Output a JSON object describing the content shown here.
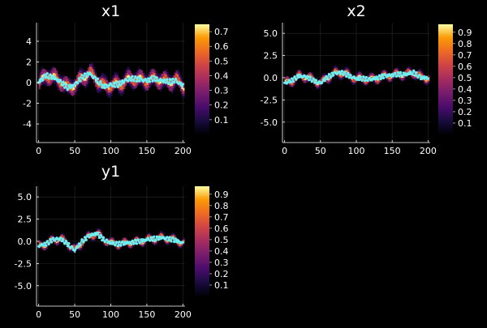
{
  "chart_data": [
    {
      "type": "heatmap+scatter",
      "title": "x1",
      "x_ticks": [
        "0",
        "50",
        "100",
        "150",
        "200"
      ],
      "y_ticks": [
        "-4",
        "-2",
        "0",
        "2",
        "4"
      ],
      "xlim": [
        -3,
        203
      ],
      "ylim": [
        -5.8,
        5.8
      ],
      "grid": true,
      "colorbar_ticks": [
        "0.1",
        "0.2",
        "0.3",
        "0.4",
        "0.5",
        "0.6",
        "0.7"
      ],
      "colorbar_range": [
        0.0,
        0.75
      ],
      "band_halfwidth": 0.9,
      "line_color": "#6ff0f0",
      "points": {
        "x": [
          0,
          10,
          20,
          30,
          40,
          50,
          60,
          70,
          80,
          90,
          100,
          110,
          120,
          130,
          140,
          150,
          160,
          170,
          180,
          190,
          200
        ],
        "y": [
          0.0,
          0.7,
          0.5,
          0.1,
          -0.5,
          -0.2,
          0.5,
          0.9,
          0.3,
          -0.4,
          -0.2,
          -0.2,
          0.2,
          0.4,
          0.3,
          0.2,
          0.4,
          0.2,
          0.1,
          0.2,
          -0.3
        ]
      }
    },
    {
      "type": "heatmap+scatter",
      "title": "x2",
      "x_ticks": [
        "0",
        "50",
        "100",
        "150",
        "200"
      ],
      "y_ticks": [
        "5.0",
        "2.5",
        "0.0",
        "-2.5",
        "-5.0"
      ],
      "y_tick_values": [
        5,
        2.5,
        0,
        -2.5,
        -5
      ],
      "xlim": [
        -3,
        203
      ],
      "ylim": [
        -7.3,
        6.2
      ],
      "grid": true,
      "colorbar_ticks": [
        "0.1",
        "0.2",
        "0.3",
        "0.4",
        "0.5",
        "0.6",
        "0.7",
        "0.8",
        "0.9"
      ],
      "colorbar_range": [
        0.0,
        0.97
      ],
      "band_halfwidth": 0.55,
      "line_color": "#6ff0f0",
      "points": {
        "x": [
          0,
          10,
          20,
          30,
          40,
          50,
          60,
          70,
          80,
          90,
          100,
          110,
          120,
          130,
          140,
          150,
          160,
          170,
          180,
          190,
          200
        ],
        "y": [
          -0.6,
          -0.3,
          0.2,
          0.1,
          -0.3,
          -0.6,
          0.1,
          0.5,
          0.6,
          0.2,
          -0.1,
          -0.1,
          -0.2,
          0.0,
          0.2,
          0.3,
          0.4,
          0.4,
          0.6,
          0.0,
          0.0
        ]
      }
    },
    {
      "type": "heatmap+scatter",
      "title": "y1",
      "x_ticks": [
        "0",
        "50",
        "100",
        "150",
        "200"
      ],
      "y_ticks": [
        "5.0",
        "2.5",
        "0.0",
        "-2.5",
        "-5.0"
      ],
      "y_tick_values": [
        5,
        2.5,
        0,
        -2.5,
        -5
      ],
      "xlim": [
        -3,
        203
      ],
      "ylim": [
        -7.3,
        6.2
      ],
      "grid": true,
      "colorbar_ticks": [
        "0.1",
        "0.2",
        "0.3",
        "0.4",
        "0.5",
        "0.6",
        "0.7",
        "0.8",
        "0.9"
      ],
      "colorbar_range": [
        0.0,
        0.97
      ],
      "band_halfwidth": 0.45,
      "line_color": "#6ff0f0",
      "points": {
        "x": [
          0,
          10,
          20,
          30,
          40,
          50,
          60,
          70,
          80,
          90,
          100,
          110,
          120,
          130,
          140,
          150,
          160,
          170,
          180,
          190,
          200
        ],
        "y": [
          -0.5,
          -0.3,
          0.2,
          0.3,
          -0.3,
          -1.0,
          0.0,
          0.6,
          0.9,
          0.2,
          -0.2,
          -0.3,
          -0.2,
          -0.1,
          0.0,
          0.2,
          0.3,
          0.4,
          0.3,
          0.1,
          -0.2
        ]
      }
    }
  ]
}
